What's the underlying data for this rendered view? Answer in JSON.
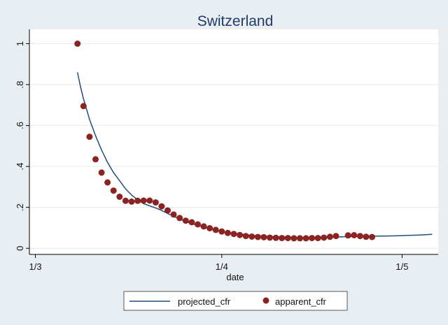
{
  "chart_data": {
    "type": "scatter",
    "title": "Switzerland",
    "xlabel": "date",
    "ylabel": "",
    "x_axis": {
      "unit": "day of year 2020 (1/3 = Mar 1)",
      "xlim": [
        59,
        127
      ],
      "ticks": [
        {
          "value": 60,
          "label": "1/3"
        },
        {
          "value": 91,
          "label": "1/4"
        },
        {
          "value": 121,
          "label": "1/5"
        }
      ]
    },
    "y_axis": {
      "ylim": [
        -0.03,
        1.07
      ],
      "ticks": [
        {
          "value": 0,
          "label": "0"
        },
        {
          "value": 0.2,
          "label": ".2"
        },
        {
          "value": 0.4,
          "label": ".4"
        },
        {
          "value": 0.6,
          "label": ".6"
        },
        {
          "value": 0.8,
          "label": ".8"
        },
        {
          "value": 1,
          "label": "1"
        }
      ]
    },
    "grid": "horizontal",
    "legend_position": "bottom",
    "series": [
      {
        "name": "projected_cfr",
        "kind": "line",
        "color": "#1f4e79",
        "x": [
          67,
          67.5,
          68,
          69,
          70,
          71,
          72,
          73,
          74,
          75,
          76,
          77,
          78,
          79,
          80,
          81,
          82,
          84,
          86,
          88,
          90,
          92,
          94,
          96,
          98,
          100,
          102,
          104,
          106,
          108,
          110,
          112,
          114,
          116,
          118,
          120,
          122,
          124,
          126
        ],
        "y": [
          0.86,
          0.79,
          0.73,
          0.63,
          0.55,
          0.48,
          0.42,
          0.37,
          0.33,
          0.29,
          0.26,
          0.237,
          0.218,
          0.207,
          0.197,
          0.185,
          0.17,
          0.143,
          0.12,
          0.103,
          0.088,
          0.077,
          0.069,
          0.063,
          0.059,
          0.056,
          0.054,
          0.053,
          0.053,
          0.054,
          0.055,
          0.057,
          0.058,
          0.059,
          0.06,
          0.061,
          0.063,
          0.065,
          0.068
        ]
      },
      {
        "name": "apparent_cfr",
        "kind": "scatter",
        "color": "#8b2323",
        "x": [
          67,
          68,
          69,
          70,
          71,
          72,
          73,
          74,
          75,
          76,
          77,
          78,
          79,
          80,
          81,
          82,
          83,
          84,
          85,
          86,
          87,
          88,
          89,
          90,
          91,
          92,
          93,
          94,
          95,
          96,
          97,
          98,
          99,
          100,
          101,
          102,
          103,
          104,
          105,
          106,
          107,
          108,
          109,
          110,
          112,
          113,
          114,
          115,
          116
        ],
        "y": [
          1.0,
          0.695,
          0.545,
          0.435,
          0.37,
          0.322,
          0.282,
          0.252,
          0.232,
          0.228,
          0.232,
          0.233,
          0.233,
          0.224,
          0.205,
          0.185,
          0.165,
          0.148,
          0.135,
          0.127,
          0.117,
          0.107,
          0.098,
          0.09,
          0.082,
          0.075,
          0.07,
          0.065,
          0.06,
          0.057,
          0.055,
          0.054,
          0.052,
          0.051,
          0.05,
          0.05,
          0.049,
          0.049,
          0.049,
          0.05,
          0.05,
          0.052,
          0.056,
          0.06,
          0.063,
          0.064,
          0.06,
          0.056,
          0.055
        ]
      }
    ]
  }
}
